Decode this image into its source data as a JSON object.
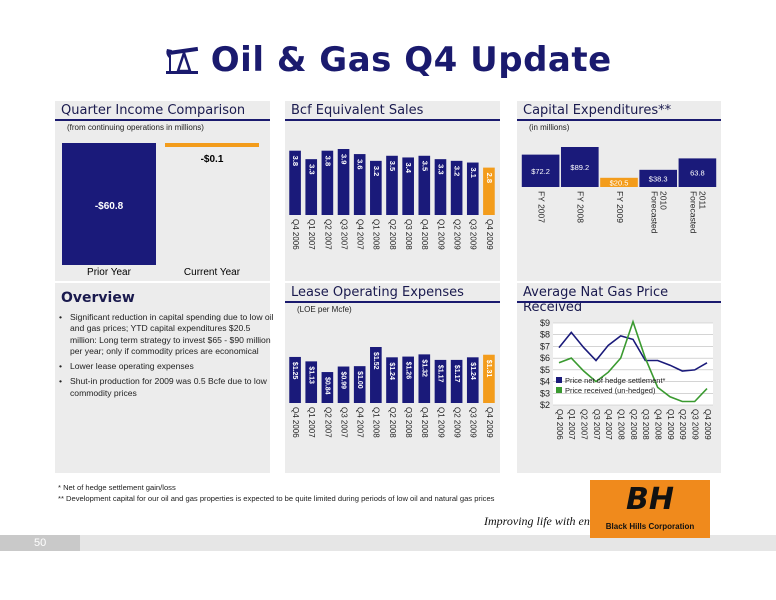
{
  "title": "Oil & Gas Q4 Update",
  "colors": {
    "navy": "#1a1a7a",
    "orange": "#f39c1b",
    "panel": "#ececec",
    "title_blue": "#1a1a6e",
    "green": "#3a9a30"
  },
  "income": {
    "title": "Quarter Income Comparison",
    "subtitle": "(from continuing operations in millions)",
    "prior_value": "-$60.8",
    "current_value": "-$0.1",
    "prior_label": "Prior Year",
    "current_label": "Current Year"
  },
  "bcf": {
    "title": "Bcf Equivalent Sales",
    "categories": [
      "Q4 2006",
      "Q1 2007",
      "Q2 2007",
      "Q3 2007",
      "Q4 2007",
      "Q1 2008",
      "Q2 2008",
      "Q3 2008",
      "Q4 2008",
      "Q1 2009",
      "Q2 2009",
      "Q3 2009",
      "Q4 2009"
    ],
    "values": [
      3.8,
      3.3,
      3.8,
      3.9,
      3.6,
      3.2,
      3.5,
      3.4,
      3.5,
      3.3,
      3.2,
      3.1,
      2.8
    ],
    "labels": [
      "3.8",
      "3.3",
      "3.8",
      "3.9",
      "3.6",
      "3.2",
      "3.5",
      "3.4",
      "3.5",
      "3.3",
      "3.2",
      "3.1",
      "2.8"
    ]
  },
  "capex": {
    "title": "Capital Expenditures**",
    "subtitle": "(in millions)",
    "categories": [
      "FY 2007",
      "FY 2008",
      "FY 2009",
      "Forecasted 2010",
      "Forecasted 2011"
    ],
    "values": [
      72.2,
      89.2,
      20.5,
      38.3,
      63.8
    ],
    "labels": [
      "$72.2",
      "$89.2",
      "$20.5",
      "$38.3",
      "63.8"
    ]
  },
  "loe": {
    "title": "Lease Operating Expenses",
    "subtitle": "(LOE per Mcfe)",
    "categories": [
      "Q4 2006",
      "Q1 2007",
      "Q2 2007",
      "Q3 2007",
      "Q4 2007",
      "Q1 2008",
      "Q2 2008",
      "Q3 2008",
      "Q4 2008",
      "Q1 2009",
      "Q2 2009",
      "Q3 2009",
      "Q4 2009"
    ],
    "values": [
      1.25,
      1.13,
      0.84,
      0.99,
      1.0,
      1.52,
      1.24,
      1.26,
      1.32,
      1.17,
      1.17,
      1.24,
      1.31
    ],
    "labels": [
      "$1.25",
      "$1.13",
      "$0.84",
      "$0.99",
      "$1.00",
      "$1.52",
      "$1.24",
      "$1.26",
      "$1.32",
      "$1.17",
      "$1.17",
      "$1.24",
      "$1.31"
    ]
  },
  "gas": {
    "title": "Average Nat Gas Price Received",
    "categories": [
      "Q4 2006",
      "Q1 2007",
      "Q2 2007",
      "Q3 2007",
      "Q4 2007",
      "Q1 2008",
      "Q2 2008",
      "Q3 2008",
      "Q4 2008",
      "Q1 2009",
      "Q2 2009",
      "Q3 2009",
      "Q4 2009"
    ],
    "y_ticks": [
      "$9",
      "$8",
      "$7",
      "$6",
      "$5",
      "$4",
      "$3",
      "$2"
    ],
    "ylim": [
      2,
      9
    ],
    "series": [
      {
        "name": "Price net of hedge settlement*",
        "values": [
          6.9,
          8.2,
          6.9,
          5.8,
          7.1,
          7.9,
          7.6,
          5.8,
          5.8,
          5.4,
          4.9,
          5.0,
          5.6
        ]
      },
      {
        "name": "Price received (un-hedged)",
        "values": [
          5.6,
          6.0,
          4.9,
          4.0,
          4.8,
          6.0,
          9.1,
          6.0,
          3.5,
          2.7,
          2.3,
          2.3,
          3.4
        ]
      }
    ]
  },
  "overview": {
    "title": "Overview",
    "bullets": [
      "Significant reduction in capital spending due to low oil and gas prices; YTD capital expenditures $20.5 million: Long term strategy to invest $65 - $90 million per year; only if commodity prices are economical",
      "Lower lease operating expenses",
      "Shut-in production for 2009 was 0.5 Bcfe due to low commodity prices"
    ]
  },
  "footnotes": [
    "* Net of hedge settlement gain/loss",
    "** Development capital for our oil and gas properties is expected to be quite limited during periods of low oil and natural gas prices"
  ],
  "brand": {
    "tagline": "Improving life with energy",
    "logo_mark": "BH",
    "company": "Black Hills Corporation"
  },
  "page_number": "50"
}
